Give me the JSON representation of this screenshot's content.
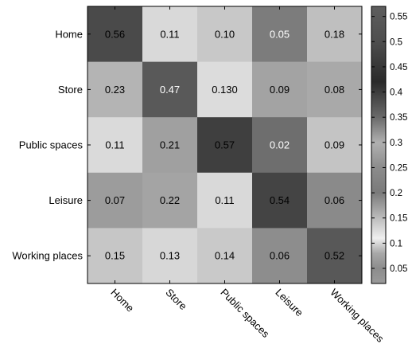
{
  "chart_data": {
    "type": "heatmap",
    "row_labels": [
      "Home",
      "Store",
      "Public spaces",
      "Leisure",
      "Working places"
    ],
    "col_labels": [
      "Home",
      "Store",
      "Public spaces",
      "Leisure",
      "Working places"
    ],
    "values": [
      [
        0.56,
        0.11,
        0.1,
        0.05,
        0.18
      ],
      [
        0.23,
        0.47,
        0.13,
        0.09,
        0.08
      ],
      [
        0.11,
        0.21,
        0.57,
        0.02,
        0.09
      ],
      [
        0.07,
        0.22,
        0.11,
        0.54,
        0.06
      ],
      [
        0.15,
        0.13,
        0.14,
        0.06,
        0.52
      ]
    ],
    "cell_labels": [
      [
        "0.56",
        "0.11",
        "0.10",
        "0.05",
        "0.18"
      ],
      [
        "0.23",
        "0.47",
        "0.130",
        "0.09",
        "0.08"
      ],
      [
        "0.11",
        "0.21",
        "0.57",
        "0.02",
        "0.09"
      ],
      [
        "0.07",
        "0.22",
        "0.11",
        "0.54",
        "0.06"
      ],
      [
        "0.15",
        "0.13",
        "0.14",
        "0.06",
        "0.52"
      ]
    ],
    "cell_shades": [
      [
        "#4a4a4a",
        "#d9d9d9",
        "#c8c8c8",
        "#7c7c7c",
        "#bfbfbf"
      ],
      [
        "#b4b4b4",
        "#595959",
        "#dcdcdc",
        "#a3a3a3",
        "#a9a9a9"
      ],
      [
        "#dadada",
        "#a0a0a0",
        "#3f3f3f",
        "#6e6e6e",
        "#c4c4c4"
      ],
      [
        "#9c9c9c",
        "#a4a4a4",
        "#d9d9d9",
        "#444444",
        "#8a8a8a"
      ],
      [
        "#c6c6c6",
        "#d7d7d7",
        "#c9c9c9",
        "#8d8d8d",
        "#585858"
      ]
    ],
    "cell_text_colors": [
      [
        "#000000",
        "#000000",
        "#000000",
        "#ffffff",
        "#000000"
      ],
      [
        "#000000",
        "#ffffff",
        "#000000",
        "#000000",
        "#000000"
      ],
      [
        "#000000",
        "#000000",
        "#000000",
        "#ffffff",
        "#000000"
      ],
      [
        "#000000",
        "#000000",
        "#000000",
        "#000000",
        "#000000"
      ],
      [
        "#000000",
        "#000000",
        "#000000",
        "#000000",
        "#000000"
      ]
    ],
    "colorbar": {
      "ticks": [
        0.55,
        0.5,
        0.45,
        0.4,
        0.35,
        0.3,
        0.25,
        0.2,
        0.15,
        0.1,
        0.05
      ],
      "tick_labels": [
        "0.55",
        "0.5",
        "0.45",
        "0.4",
        "0.35",
        "0.3",
        "0.25",
        "0.2",
        "0.15",
        "0.1",
        "0.05"
      ],
      "range": [
        0.02,
        0.57
      ],
      "gradient_stops": [
        {
          "value": 0.57,
          "color": "#5e5e5e"
        },
        {
          "value": 0.5,
          "color": "#4e4e4e"
        },
        {
          "value": 0.42,
          "color": "#2a2a2a"
        },
        {
          "value": 0.35,
          "color": "#6a6a6a"
        },
        {
          "value": 0.3,
          "color": "#b0b0b0"
        },
        {
          "value": 0.25,
          "color": "#8c8c8c"
        },
        {
          "value": 0.2,
          "color": "#7a7a7a"
        },
        {
          "value": 0.15,
          "color": "#bcbcbc"
        },
        {
          "value": 0.11,
          "color": "#efefef"
        },
        {
          "value": 0.08,
          "color": "#a8a8a8"
        },
        {
          "value": 0.05,
          "color": "#8c8c8c"
        },
        {
          "value": 0.02,
          "color": "#9a9a9a"
        }
      ]
    },
    "grid": false,
    "legend": "right colorbar"
  }
}
